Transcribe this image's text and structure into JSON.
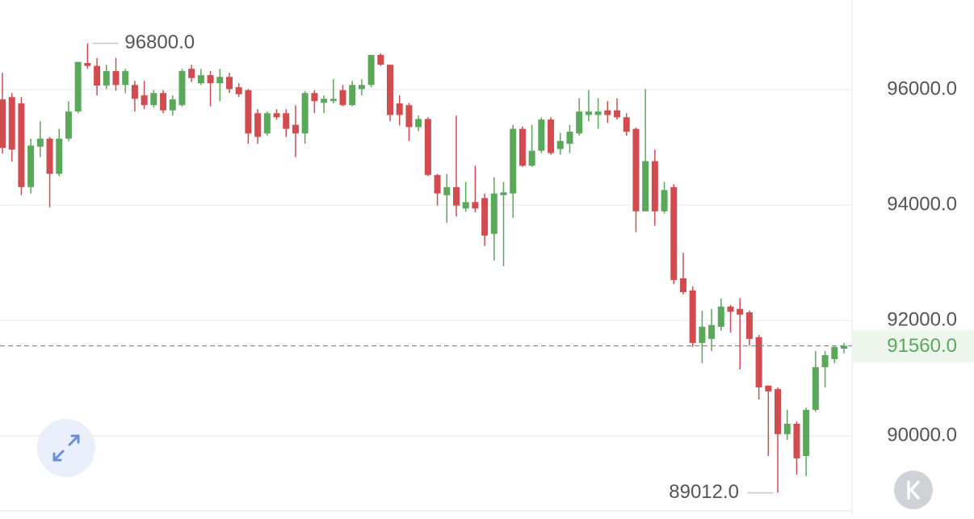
{
  "chart_data": {
    "type": "candlestick",
    "ylim": [
      88713,
      97552
    ],
    "yticks": [
      {
        "value": 90000,
        "label": "90000.0"
      },
      {
        "value": 92000,
        "label": "92000.0"
      },
      {
        "value": 94000,
        "label": "94000.0"
      },
      {
        "value": 96000,
        "label": "96000.0"
      }
    ],
    "grid": true,
    "up_color": "#5aa95a",
    "down_color": "#d24c4f",
    "high_label": {
      "value": 96800,
      "label": "96800.0"
    },
    "low_label": {
      "value": 89012,
      "label": "89012.0"
    },
    "last_price": {
      "value": 91560,
      "label": "91560.0"
    },
    "open": [
      95830,
      95870,
      95760,
      94310,
      95010,
      95150,
      94540,
      95150,
      95620,
      96460,
      96410,
      96070,
      96320,
      96080,
      96080,
      95900,
      95730,
      95940,
      95640,
      95730,
      96360,
      96110,
      96250,
      96110,
      96220,
      96040,
      95990,
      95590,
      95240,
      95590,
      95590,
      95390,
      95240,
      95940,
      95770,
      95800,
      95990,
      95730,
      96010,
      96080,
      96600,
      96430,
      95760,
      95730,
      95350,
      95490,
      94520,
      94170,
      94310,
      93940,
      94050,
      94120,
      93500,
      94170,
      94200,
      95320,
      94680,
      94940,
      95480,
      94970,
      95060,
      95240,
      95560,
      95560,
      95640,
      95640,
      95520,
      95320,
      93890,
      94760,
      93890,
      94310,
      92730,
      92520,
      91610,
      91680,
      91890,
      92240,
      92200,
      92140,
      91710,
      90870,
      90810,
      90030,
      90210,
      89650,
      90450,
      91190,
      91330,
      91510
    ],
    "high": [
      96290,
      95940,
      95870,
      95150,
      95450,
      95180,
      95320,
      95800,
      96480,
      96800,
      96550,
      96430,
      96550,
      96360,
      96150,
      96150,
      95990,
      95990,
      95900,
      96360,
      96430,
      96360,
      96320,
      96360,
      96290,
      96110,
      96010,
      95660,
      95620,
      95660,
      95660,
      95730,
      95970,
      95990,
      95900,
      96180,
      96080,
      96150,
      96180,
      96600,
      96630,
      96430,
      95900,
      95770,
      95550,
      95520,
      94540,
      94540,
      95550,
      94400,
      94680,
      94200,
      94480,
      94400,
      95390,
      95360,
      95390,
      95520,
      95520,
      95250,
      95390,
      95850,
      95990,
      95850,
      95800,
      95850,
      95590,
      95340,
      96010,
      94960,
      94400,
      94360,
      93170,
      92590,
      92170,
      92200,
      92380,
      92270,
      92380,
      92170,
      91750,
      90870,
      90840,
      90450,
      90250,
      90490,
      91470,
      91470,
      91560,
      91610
    ],
    "low": [
      94890,
      94750,
      94170,
      94200,
      94830,
      93960,
      94500,
      95110,
      95590,
      96360,
      95900,
      96010,
      95980,
      95940,
      95620,
      95660,
      95690,
      95590,
      95550,
      95700,
      96130,
      96080,
      95710,
      95800,
      95940,
      95870,
      95060,
      95060,
      95200,
      95480,
      95180,
      94830,
      95060,
      95590,
      95590,
      95760,
      95710,
      95710,
      95900,
      96040,
      96410,
      95450,
      95380,
      95110,
      95280,
      94500,
      93990,
      93690,
      93800,
      93880,
      93870,
      93290,
      93040,
      92940,
      93780,
      94660,
      94660,
      94900,
      94870,
      94870,
      94900,
      95200,
      95450,
      95320,
      95420,
      95480,
      95200,
      93530,
      93890,
      93640,
      93850,
      92630,
      92450,
      91540,
      91260,
      91470,
      91820,
      91790,
      91150,
      91560,
      90630,
      89650,
      89012,
      89930,
      89330,
      89300,
      90420,
      90840,
      91260,
      91430
    ],
    "close": [
      94990,
      94960,
      94310,
      95030,
      95150,
      94540,
      95150,
      95620,
      96480,
      96410,
      96070,
      96320,
      96080,
      96320,
      95840,
      95730,
      95940,
      95640,
      95830,
      96320,
      96200,
      96250,
      96110,
      96220,
      96010,
      95920,
      95240,
      95180,
      95590,
      95520,
      95320,
      95240,
      95940,
      95800,
      95840,
      95840,
      95730,
      96080,
      96080,
      96600,
      96430,
      95560,
      95560,
      95350,
      95490,
      94520,
      94200,
      94310,
      93990,
      94050,
      93940,
      93470,
      94200,
      94220,
      95320,
      94680,
      94940,
      95480,
      94900,
      95110,
      95270,
      95620,
      95620,
      95620,
      95560,
      95520,
      95270,
      93890,
      94760,
      93890,
      94260,
      92700,
      92490,
      91610,
      91890,
      91920,
      92240,
      92150,
      92100,
      91680,
      90840,
      90770,
      90030,
      90210,
      89610,
      90450,
      91190,
      91400,
      91540,
      91560
    ]
  }
}
